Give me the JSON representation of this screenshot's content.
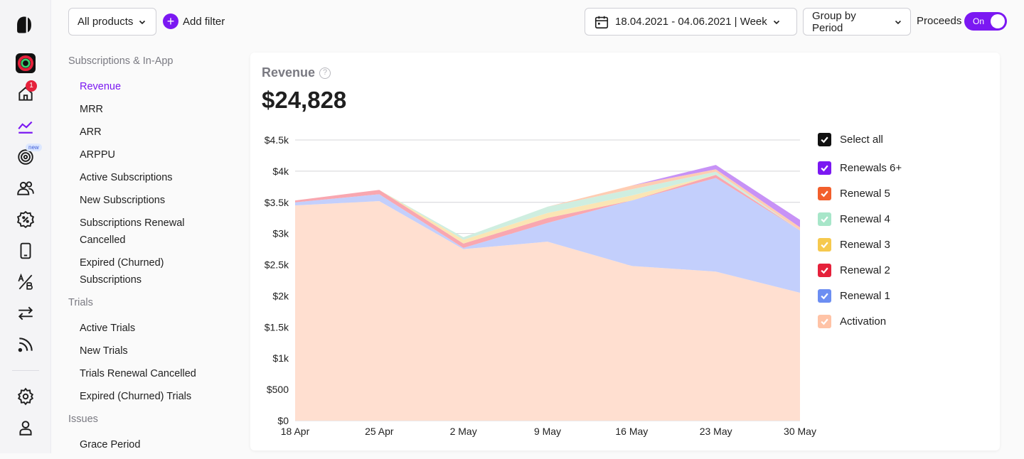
{
  "rail": {
    "notification_count": "1",
    "new_badge": "new",
    "icons": [
      "app-logo-icon",
      "app-avatar-icon",
      "home-icon",
      "analytics-icon",
      "target-icon",
      "users-icon",
      "promo-icon",
      "device-icon",
      "ab-test-icon",
      "transfer-icon",
      "feed-icon",
      "settings-icon",
      "account-icon"
    ]
  },
  "topbar": {
    "product_select": "All products",
    "add_filter": "Add filter",
    "date_range": "18.04.2021 - 04.06.2021 | Week",
    "group_by": "Group by Period",
    "proceeds_label": "Proceeds",
    "proceeds_toggle": "On"
  },
  "subnav": {
    "sections": [
      {
        "title": "Subscriptions & In-App",
        "items": [
          "Revenue",
          "MRR",
          "ARR",
          "ARPPU",
          "Active Subscriptions",
          "New Subscriptions",
          "Subscriptions Renewal Cancelled",
          "Expired (Churned) Subscriptions"
        ]
      },
      {
        "title": "Trials",
        "items": [
          "Active Trials",
          "New Trials",
          "Trials Renewal Cancelled",
          "Expired (Churned) Trials"
        ]
      },
      {
        "title": "Issues",
        "items": [
          "Grace Period"
        ]
      }
    ],
    "active": "Revenue"
  },
  "card": {
    "title": "Revenue",
    "help_glyph": "?",
    "total": "$24,828"
  },
  "legend": {
    "select_all": "Select all"
  },
  "chart_data": {
    "type": "area",
    "stacked": true,
    "categories": [
      "18 Apr",
      "25 Apr",
      "2 May",
      "9 May",
      "16 May",
      "23 May",
      "30 May"
    ],
    "yticks": [
      "$0",
      "$500",
      "$1k",
      "$1.5k",
      "$2k",
      "$2.5k",
      "$3k",
      "$3.5k",
      "$4k",
      "$4.5k"
    ],
    "ylim": [
      0,
      4500
    ],
    "grid": true,
    "legend_position": "right",
    "series": [
      {
        "name": "Activation",
        "color": "#ffdfd0",
        "legend_color": "#ffc3a6",
        "values": [
          3450,
          3520,
          2750,
          2870,
          2480,
          2390,
          2050
        ]
      },
      {
        "name": "Renewal 1",
        "color": "#c3cffc",
        "legend_color": "#6c8ef2",
        "values": [
          50,
          110,
          20,
          300,
          1050,
          1500,
          1000
        ]
      },
      {
        "name": "Renewal 2",
        "color": "#f9a7b0",
        "legend_color": "#e5213b",
        "values": [
          30,
          70,
          70,
          80,
          0,
          50,
          0
        ]
      },
      {
        "name": "Renewal 3",
        "color": "#fbe5b4",
        "legend_color": "#f6c94e",
        "values": [
          0,
          0,
          60,
          80,
          80,
          0,
          0
        ]
      },
      {
        "name": "Renewal 4",
        "color": "#cfeee0",
        "legend_color": "#a7e6c9",
        "values": [
          0,
          0,
          40,
          100,
          100,
          50,
          0
        ]
      },
      {
        "name": "Renewal 5",
        "color": "#ffcdb3",
        "legend_color": "#f25f2c",
        "values": [
          0,
          0,
          0,
          0,
          60,
          40,
          50
        ]
      },
      {
        "name": "Renewals 6+",
        "color": "#c792f6",
        "legend_color": "#7b18f2",
        "values": [
          0,
          0,
          0,
          0,
          0,
          70,
          120
        ]
      }
    ]
  }
}
